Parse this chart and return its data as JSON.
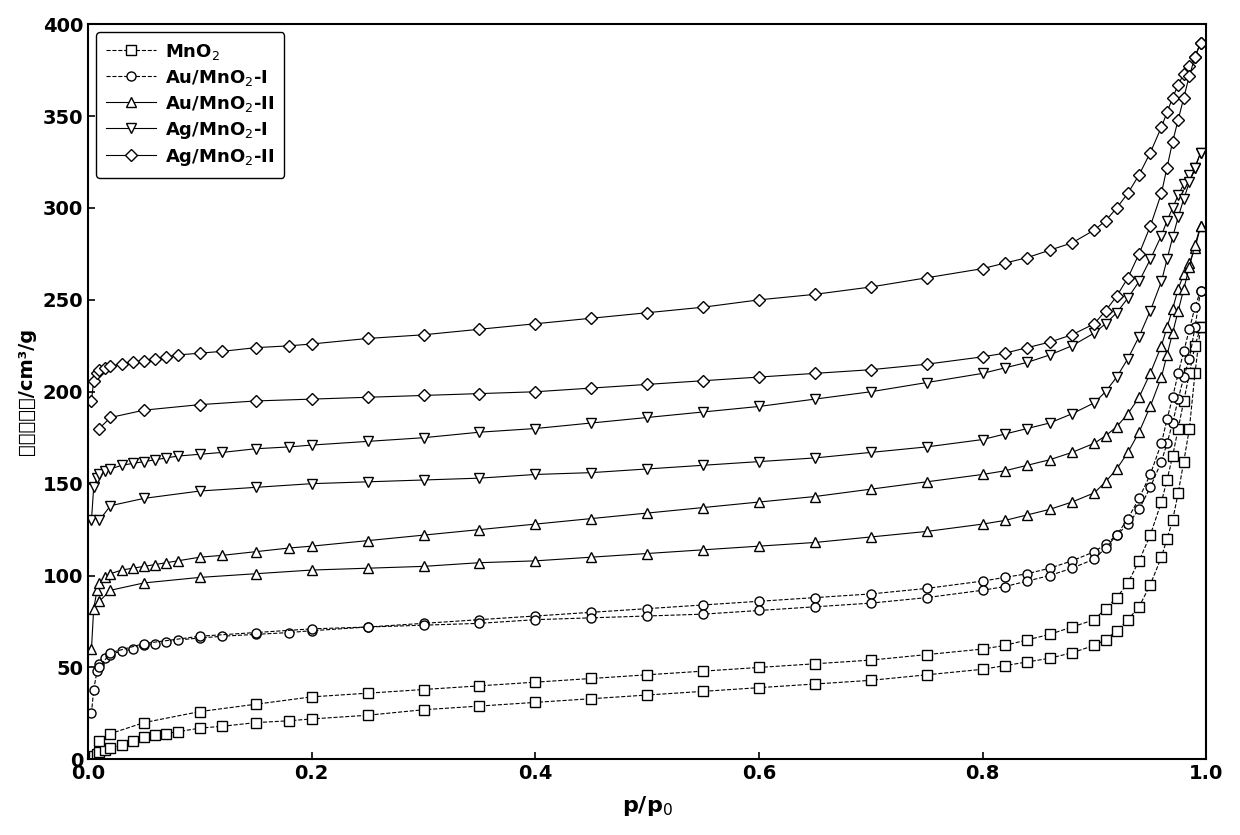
{
  "title": "",
  "xlabel": "p/p₀",
  "ylabel": "吸脱附体积/cm³/g",
  "xlim": [
    0.0,
    1.0
  ],
  "ylim": [
    0,
    400
  ],
  "yticks": [
    0,
    50,
    100,
    150,
    200,
    250,
    300,
    350,
    400
  ],
  "xticks": [
    0.0,
    0.2,
    0.4,
    0.6,
    0.8,
    1.0
  ],
  "series": [
    {
      "label": "MnO$_2$",
      "marker": "s",
      "linestyle": "--",
      "color": "#000000",
      "adsorption_x": [
        0.003,
        0.005,
        0.008,
        0.01,
        0.015,
        0.02,
        0.03,
        0.04,
        0.05,
        0.06,
        0.07,
        0.08,
        0.1,
        0.12,
        0.15,
        0.18,
        0.2,
        0.25,
        0.3,
        0.35,
        0.4,
        0.45,
        0.5,
        0.55,
        0.6,
        0.65,
        0.7,
        0.75,
        0.8,
        0.82,
        0.84,
        0.86,
        0.88,
        0.9,
        0.91,
        0.92,
        0.93,
        0.94,
        0.95,
        0.96,
        0.965,
        0.97,
        0.975,
        0.98,
        0.985,
        0.99,
        0.995
      ],
      "adsorption_y": [
        1,
        2,
        3,
        4,
        5,
        6,
        8,
        10,
        12,
        13,
        14,
        15,
        17,
        18,
        20,
        21,
        22,
        24,
        27,
        29,
        31,
        33,
        35,
        37,
        39,
        41,
        43,
        46,
        49,
        51,
        53,
        55,
        58,
        62,
        65,
        70,
        76,
        83,
        95,
        110,
        120,
        130,
        145,
        162,
        180,
        210,
        235
      ],
      "desorption_x": [
        0.995,
        0.99,
        0.985,
        0.98,
        0.975,
        0.97,
        0.965,
        0.96,
        0.95,
        0.94,
        0.93,
        0.92,
        0.91,
        0.9,
        0.88,
        0.86,
        0.84,
        0.82,
        0.8,
        0.75,
        0.7,
        0.65,
        0.6,
        0.55,
        0.5,
        0.45,
        0.4,
        0.35,
        0.3,
        0.25,
        0.2,
        0.15,
        0.1,
        0.05,
        0.02,
        0.01
      ],
      "desorption_y": [
        235,
        225,
        210,
        195,
        180,
        165,
        152,
        140,
        122,
        108,
        96,
        88,
        82,
        76,
        72,
        68,
        65,
        62,
        60,
        57,
        54,
        52,
        50,
        48,
        46,
        44,
        42,
        40,
        38,
        36,
        34,
        30,
        26,
        20,
        14,
        10
      ]
    },
    {
      "label": "Au/MnO$_2$-I",
      "marker": "o",
      "linestyle": "--",
      "color": "#000000",
      "adsorption_x": [
        0.003,
        0.005,
        0.008,
        0.01,
        0.015,
        0.02,
        0.03,
        0.04,
        0.05,
        0.06,
        0.07,
        0.08,
        0.1,
        0.12,
        0.15,
        0.18,
        0.2,
        0.25,
        0.3,
        0.35,
        0.4,
        0.45,
        0.5,
        0.55,
        0.6,
        0.65,
        0.7,
        0.75,
        0.8,
        0.82,
        0.84,
        0.86,
        0.88,
        0.9,
        0.91,
        0.92,
        0.93,
        0.94,
        0.95,
        0.96,
        0.965,
        0.97,
        0.975,
        0.98,
        0.985,
        0.99,
        0.995
      ],
      "adsorption_y": [
        25,
        38,
        48,
        52,
        55,
        57,
        59,
        60,
        62,
        63,
        64,
        65,
        66,
        67,
        68,
        69,
        70,
        72,
        74,
        76,
        78,
        80,
        82,
        84,
        86,
        88,
        90,
        93,
        97,
        99,
        101,
        104,
        108,
        113,
        117,
        122,
        128,
        136,
        148,
        162,
        172,
        183,
        196,
        208,
        218,
        235,
        255
      ],
      "desorption_x": [
        0.995,
        0.99,
        0.985,
        0.98,
        0.975,
        0.97,
        0.965,
        0.96,
        0.95,
        0.94,
        0.93,
        0.92,
        0.91,
        0.9,
        0.88,
        0.86,
        0.84,
        0.82,
        0.8,
        0.75,
        0.7,
        0.65,
        0.6,
        0.55,
        0.5,
        0.45,
        0.4,
        0.35,
        0.3,
        0.25,
        0.2,
        0.15,
        0.1,
        0.05,
        0.02,
        0.01
      ],
      "desorption_y": [
        255,
        246,
        234,
        222,
        210,
        197,
        185,
        172,
        155,
        142,
        131,
        122,
        115,
        109,
        104,
        100,
        97,
        94,
        92,
        88,
        85,
        83,
        81,
        79,
        78,
        77,
        76,
        74,
        73,
        72,
        71,
        69,
        67,
        63,
        58,
        50
      ]
    },
    {
      "label": "Au/MnO$_2$-II",
      "marker": "^",
      "linestyle": "-",
      "color": "#000000",
      "adsorption_x": [
        0.003,
        0.005,
        0.008,
        0.01,
        0.015,
        0.02,
        0.03,
        0.04,
        0.05,
        0.06,
        0.07,
        0.08,
        0.1,
        0.12,
        0.15,
        0.18,
        0.2,
        0.25,
        0.3,
        0.35,
        0.4,
        0.45,
        0.5,
        0.55,
        0.6,
        0.65,
        0.7,
        0.75,
        0.8,
        0.82,
        0.84,
        0.86,
        0.88,
        0.9,
        0.91,
        0.92,
        0.93,
        0.94,
        0.95,
        0.96,
        0.965,
        0.97,
        0.975,
        0.98,
        0.985,
        0.99,
        0.995
      ],
      "adsorption_y": [
        60,
        82,
        92,
        96,
        99,
        101,
        103,
        104,
        105,
        106,
        107,
        108,
        110,
        111,
        113,
        115,
        116,
        119,
        122,
        125,
        128,
        131,
        134,
        137,
        140,
        143,
        147,
        151,
        155,
        157,
        160,
        163,
        167,
        172,
        176,
        181,
        188,
        197,
        210,
        225,
        235,
        245,
        256,
        264,
        270,
        278,
        290
      ],
      "desorption_x": [
        0.995,
        0.99,
        0.985,
        0.98,
        0.975,
        0.97,
        0.965,
        0.96,
        0.95,
        0.94,
        0.93,
        0.92,
        0.91,
        0.9,
        0.88,
        0.86,
        0.84,
        0.82,
        0.8,
        0.75,
        0.7,
        0.65,
        0.6,
        0.55,
        0.5,
        0.45,
        0.4,
        0.35,
        0.3,
        0.25,
        0.2,
        0.15,
        0.1,
        0.05,
        0.02,
        0.01
      ],
      "desorption_y": [
        290,
        280,
        268,
        256,
        244,
        232,
        220,
        208,
        192,
        178,
        167,
        158,
        151,
        145,
        140,
        136,
        133,
        130,
        128,
        124,
        121,
        118,
        116,
        114,
        112,
        110,
        108,
        107,
        105,
        104,
        103,
        101,
        99,
        96,
        92,
        86
      ]
    },
    {
      "label": "Ag/MnO$_2$-I",
      "marker": "v",
      "linestyle": "-",
      "color": "#000000",
      "adsorption_x": [
        0.003,
        0.005,
        0.008,
        0.01,
        0.015,
        0.02,
        0.03,
        0.04,
        0.05,
        0.06,
        0.07,
        0.08,
        0.1,
        0.12,
        0.15,
        0.18,
        0.2,
        0.25,
        0.3,
        0.35,
        0.4,
        0.45,
        0.5,
        0.55,
        0.6,
        0.65,
        0.7,
        0.75,
        0.8,
        0.82,
        0.84,
        0.86,
        0.88,
        0.9,
        0.91,
        0.92,
        0.93,
        0.94,
        0.95,
        0.96,
        0.965,
        0.97,
        0.975,
        0.98,
        0.985,
        0.99,
        0.995
      ],
      "adsorption_y": [
        130,
        148,
        153,
        155,
        157,
        158,
        160,
        161,
        162,
        163,
        164,
        165,
        166,
        167,
        169,
        170,
        171,
        173,
        175,
        178,
        180,
        183,
        186,
        189,
        192,
        196,
        200,
        205,
        210,
        213,
        216,
        220,
        225,
        232,
        237,
        243,
        251,
        260,
        272,
        285,
        293,
        300,
        307,
        313,
        318,
        322,
        330
      ],
      "desorption_x": [
        0.995,
        0.99,
        0.985,
        0.98,
        0.975,
        0.97,
        0.965,
        0.96,
        0.95,
        0.94,
        0.93,
        0.92,
        0.91,
        0.9,
        0.88,
        0.86,
        0.84,
        0.82,
        0.8,
        0.75,
        0.7,
        0.65,
        0.6,
        0.55,
        0.5,
        0.45,
        0.4,
        0.35,
        0.3,
        0.25,
        0.2,
        0.15,
        0.1,
        0.05,
        0.02,
        0.01
      ],
      "desorption_y": [
        330,
        322,
        314,
        305,
        295,
        284,
        272,
        260,
        244,
        230,
        218,
        208,
        200,
        194,
        188,
        183,
        180,
        177,
        174,
        170,
        167,
        164,
        162,
        160,
        158,
        156,
        155,
        153,
        152,
        151,
        150,
        148,
        146,
        142,
        138,
        130
      ]
    },
    {
      "label": "Ag/MnO$_2$-II",
      "marker": "D",
      "linestyle": "-",
      "color": "#000000",
      "adsorption_x": [
        0.003,
        0.005,
        0.008,
        0.01,
        0.015,
        0.02,
        0.03,
        0.04,
        0.05,
        0.06,
        0.07,
        0.08,
        0.1,
        0.12,
        0.15,
        0.18,
        0.2,
        0.25,
        0.3,
        0.35,
        0.4,
        0.45,
        0.5,
        0.55,
        0.6,
        0.65,
        0.7,
        0.75,
        0.8,
        0.82,
        0.84,
        0.86,
        0.88,
        0.9,
        0.91,
        0.92,
        0.93,
        0.94,
        0.95,
        0.96,
        0.965,
        0.97,
        0.975,
        0.98,
        0.985,
        0.99,
        0.995
      ],
      "adsorption_y": [
        195,
        206,
        210,
        212,
        213,
        214,
        215,
        216,
        217,
        218,
        219,
        220,
        221,
        222,
        224,
        225,
        226,
        229,
        231,
        234,
        237,
        240,
        243,
        246,
        250,
        253,
        257,
        262,
        267,
        270,
        273,
        277,
        281,
        288,
        293,
        300,
        308,
        318,
        330,
        344,
        352,
        360,
        367,
        373,
        377,
        382,
        390
      ],
      "desorption_x": [
        0.995,
        0.99,
        0.985,
        0.98,
        0.975,
        0.97,
        0.965,
        0.96,
        0.95,
        0.94,
        0.93,
        0.92,
        0.91,
        0.9,
        0.88,
        0.86,
        0.84,
        0.82,
        0.8,
        0.75,
        0.7,
        0.65,
        0.6,
        0.55,
        0.5,
        0.45,
        0.4,
        0.35,
        0.3,
        0.25,
        0.2,
        0.15,
        0.1,
        0.05,
        0.02,
        0.01
      ],
      "desorption_y": [
        390,
        382,
        372,
        360,
        348,
        336,
        322,
        308,
        290,
        275,
        262,
        252,
        244,
        237,
        231,
        227,
        224,
        221,
        219,
        215,
        212,
        210,
        208,
        206,
        204,
        202,
        200,
        199,
        198,
        197,
        196,
        195,
        193,
        190,
        186,
        180
      ]
    }
  ]
}
